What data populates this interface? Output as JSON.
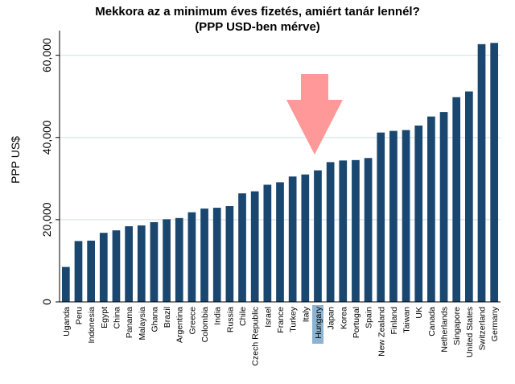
{
  "chart_data": {
    "type": "bar",
    "title": "Mekkora az a minimum éves fizetés, amiért tanár lennél?",
    "subtitle": "(PPP USD-ben mérve)",
    "xlabel": "",
    "ylabel": "PPP US$",
    "ylim": [
      0,
      66000
    ],
    "yticks": [
      0,
      20000,
      40000,
      60000
    ],
    "ytick_labels": [
      "0",
      "20,000",
      "40,000",
      "60,000"
    ],
    "grid": true,
    "categories": [
      "Uganda",
      "Peru",
      "Indonesia",
      "Egypt",
      "China",
      "Panama",
      "Malaysia",
      "Ghana",
      "Brazil",
      "Argentina",
      "Greece",
      "Colombia",
      "India",
      "Russia",
      "Chile",
      "Czech Republic",
      "Israel",
      "France",
      "Turkey",
      "Italy",
      "Hungary",
      "Japan",
      "Korea",
      "Portugal",
      "Spain",
      "New Zealand",
      "Finland",
      "Taiwan",
      "UK",
      "Canada",
      "Netherlands",
      "Singapore",
      "United States",
      "Switzerland",
      "Germany"
    ],
    "values": [
      8500,
      14800,
      14900,
      16800,
      17400,
      18400,
      18600,
      19400,
      20100,
      20400,
      21800,
      22700,
      22900,
      23300,
      26400,
      26900,
      28500,
      29100,
      30500,
      31000,
      32000,
      34000,
      34400,
      34500,
      35000,
      41200,
      41600,
      41800,
      42900,
      45100,
      46200,
      49800,
      51200,
      62700,
      63000
    ],
    "highlight_category": "Hungary",
    "bar_color": "#1a476f",
    "highlight_label_bg": "#8cb4d2",
    "arrow_color": "#ff9999",
    "grid_color": "#d9e6eb"
  }
}
